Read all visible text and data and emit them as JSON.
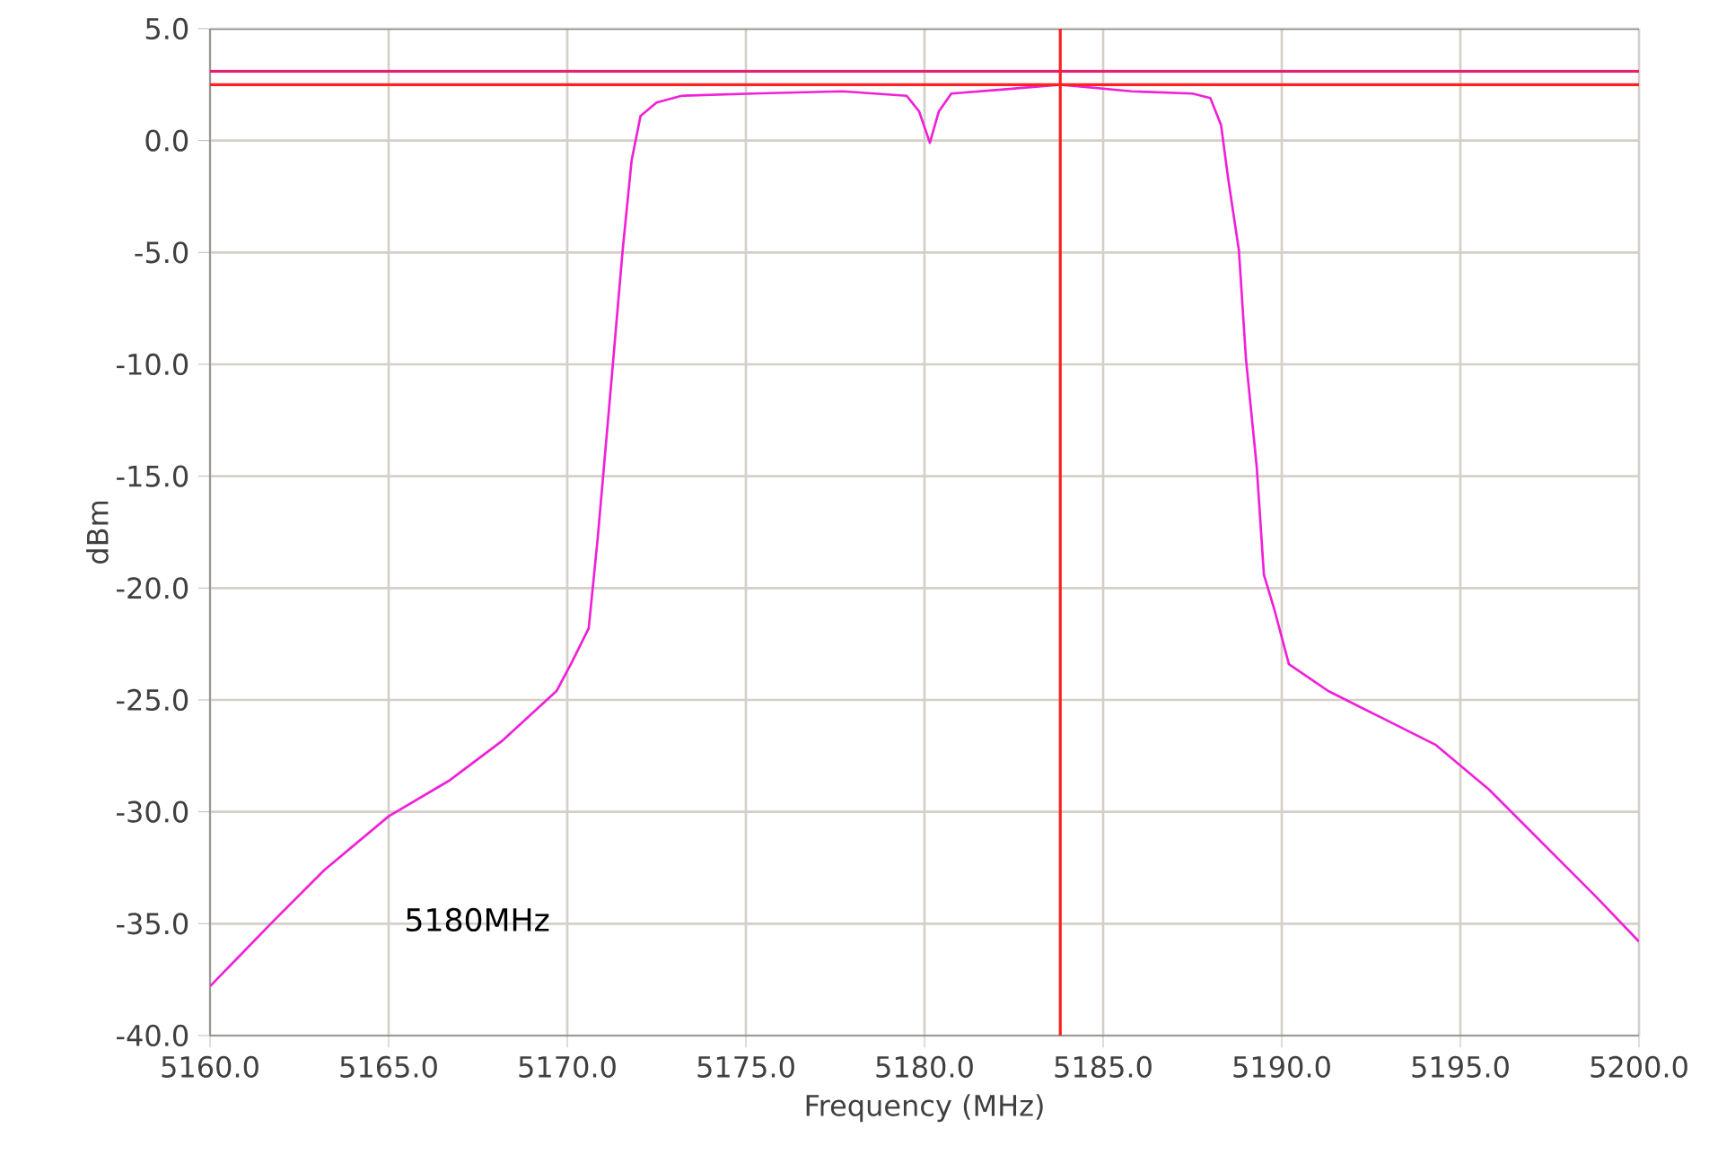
{
  "chart_data": {
    "type": "line",
    "xlabel": "Frequency (MHz)",
    "ylabel": "dBm",
    "x": [
      5160,
      5161.7,
      5163.2,
      5165.0,
      5166.7,
      5168.2,
      5169.7,
      5170.1,
      5170.6,
      5170.85,
      5171.2,
      5171.55,
      5171.8,
      5172.05,
      5172.5,
      5173.2,
      5175.2,
      5177.7,
      5179.5,
      5179.85,
      5180.15,
      5180.4,
      5180.75,
      5182.3,
      5183.8,
      5185.8,
      5187.5,
      5188.0,
      5188.3,
      5188.5,
      5188.8,
      5189.0,
      5189.3,
      5189.5,
      5189.8,
      5190.2,
      5191.3,
      5192.8,
      5194.3,
      5195.8,
      5197.3,
      5198.8,
      5200
    ],
    "series": [
      {
        "color": "#f020d8",
        "values": [
          -37.8,
          -35.0,
          -32.6,
          -30.2,
          -28.6,
          -26.8,
          -24.6,
          -23.4,
          -21.8,
          -17.8,
          -11.4,
          -4.9,
          -0.9,
          1.1,
          1.7,
          2.0,
          2.1,
          2.2,
          2.0,
          1.3,
          -0.1,
          1.3,
          2.1,
          2.3,
          2.5,
          2.2,
          2.1,
          1.9,
          0.7,
          -1.7,
          -4.9,
          -9.8,
          -14.6,
          -19.4,
          -21.0,
          -23.4,
          -24.6,
          -25.8,
          -27.0,
          -29.0,
          -31.4,
          -33.8,
          -35.8
        ]
      }
    ],
    "xlim": [
      5160,
      5200
    ],
    "ylim": [
      -40,
      5
    ],
    "xticks": [
      {
        "value": 5160,
        "label": "5160.0"
      },
      {
        "value": 5165,
        "label": "5165.0"
      },
      {
        "value": 5170,
        "label": "5170.0"
      },
      {
        "value": 5175,
        "label": "5175.0"
      },
      {
        "value": 5180,
        "label": "5180.0"
      },
      {
        "value": 5185,
        "label": "5185.0"
      },
      {
        "value": 5190,
        "label": "5190.0"
      },
      {
        "value": 5195,
        "label": "5195.0"
      },
      {
        "value": 5200,
        "label": "5200.0"
      }
    ],
    "yticks": [
      {
        "value": -40,
        "label": "-40.0"
      },
      {
        "value": -35,
        "label": "-35.0"
      },
      {
        "value": -30,
        "label": "-30.0"
      },
      {
        "value": -25,
        "label": "-25.0"
      },
      {
        "value": -20,
        "label": "-20.0"
      },
      {
        "value": -15,
        "label": "-15.0"
      },
      {
        "value": -10,
        "label": "-10.0"
      },
      {
        "value": -5,
        "label": "-5.0"
      },
      {
        "value": 0,
        "label": "0.0"
      },
      {
        "value": 5,
        "label": "5.0"
      }
    ],
    "grid": true,
    "ref_lines": [
      {
        "axis": "y",
        "value": 3.1,
        "color": "#e8206e"
      },
      {
        "axis": "y",
        "value": 2.5,
        "color": "#ff2020"
      },
      {
        "axis": "x",
        "value": 5183.8,
        "color": "#ff2020"
      }
    ],
    "annotations": [
      "5180MHz"
    ]
  }
}
